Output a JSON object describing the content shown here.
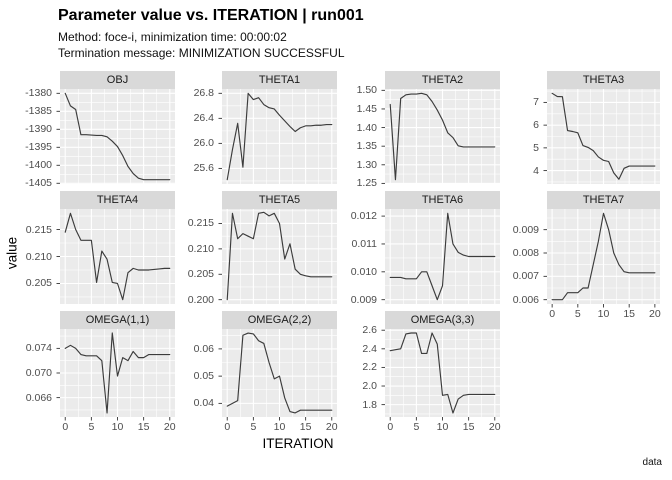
{
  "header": {
    "title": "Parameter value vs. ITERATION | run001",
    "subtitle_line1": "Method: foce-i, minimization time: 00:00:02",
    "subtitle_line2": "Termination message: MINIMIZATION SUCCESSFUL"
  },
  "axes": {
    "x_title": "ITERATION",
    "y_title": "value"
  },
  "caption": "data",
  "colors": {
    "panel_bg": "#EBEBEB",
    "strip_bg": "#D9D9D9",
    "grid": "#FFFFFF",
    "line": "#3C3C3C",
    "tick_mark": "#333333",
    "tick_text": "#4D4D4D"
  },
  "chart_data": {
    "type": "line",
    "title": "Parameter value vs. ITERATION | run001",
    "subtitle": "Method: foce-i, minimization time: 00:00:02 / Termination message: MINIMIZATION SUCCESSFUL",
    "xlabel": "ITERATION",
    "ylabel": "value",
    "caption": "data",
    "legend_position": "none",
    "grid": "on",
    "x": [
      0,
      1,
      2,
      3,
      4,
      5,
      6,
      7,
      8,
      9,
      10,
      11,
      12,
      13,
      14,
      15,
      16,
      17,
      18,
      19,
      20
    ],
    "x_range": [
      -1,
      21
    ],
    "x_ticks": [
      0,
      5,
      10,
      15,
      20
    ],
    "x_minor_ticks": [
      2.5,
      7.5,
      12.5,
      17.5
    ],
    "facets": [
      {
        "label": "OBJ",
        "row": 0,
        "col": 0,
        "show_x": false,
        "y_range": [
          -1405.2,
          -1378.8
        ],
        "y_ticks": [
          -1405,
          -1400,
          -1395,
          -1390,
          -1385,
          -1380
        ],
        "y_tick_labels": [
          "-1405",
          "-1400",
          "-1395",
          "-1390",
          "-1385",
          "-1380"
        ],
        "values": [
          -1380,
          -1383.5,
          -1384.5,
          -1391.5,
          -1391.5,
          -1391.6,
          -1391.7,
          -1391.7,
          -1392.1,
          -1393.3,
          -1394.8,
          -1397.3,
          -1400.3,
          -1402.3,
          -1403.6,
          -1404,
          -1404,
          -1404,
          -1404,
          -1404,
          -1404
        ]
      },
      {
        "label": "THETA1",
        "row": 0,
        "col": 1,
        "show_x": false,
        "y_range": [
          25.351,
          26.869
        ],
        "y_ticks": [
          25.6,
          26.0,
          26.4,
          26.8
        ],
        "y_tick_labels": [
          "25.6",
          "26.0",
          "26.4",
          "26.8"
        ],
        "values": [
          25.42,
          25.9,
          26.32,
          25.62,
          26.8,
          26.7,
          26.73,
          26.62,
          26.57,
          26.55,
          26.45,
          26.36,
          26.27,
          26.19,
          26.25,
          26.28,
          26.28,
          26.29,
          26.29,
          26.3,
          26.3
        ]
      },
      {
        "label": "THETA2",
        "row": 0,
        "col": 2,
        "show_x": false,
        "y_range": [
          1.2484,
          1.5036
        ],
        "y_ticks": [
          1.25,
          1.3,
          1.35,
          1.4,
          1.45,
          1.5
        ],
        "y_tick_labels": [
          "1.25",
          "1.30",
          "1.35",
          "1.40",
          "1.45",
          "1.50"
        ],
        "values": [
          1.462,
          1.26,
          1.478,
          1.488,
          1.49,
          1.49,
          1.492,
          1.488,
          1.47,
          1.447,
          1.42,
          1.386,
          1.373,
          1.351,
          1.348,
          1.348,
          1.348,
          1.348,
          1.348,
          1.348,
          1.348
        ]
      },
      {
        "label": "THETA3",
        "row": 0,
        "col": 3,
        "show_x": false,
        "y_range": [
          3.41,
          7.59
        ],
        "y_ticks": [
          4,
          5,
          6,
          7
        ],
        "y_tick_labels": [
          "4",
          "5",
          "6",
          "7"
        ],
        "values": [
          7.4,
          7.26,
          7.25,
          5.76,
          5.72,
          5.66,
          5.1,
          5.02,
          4.88,
          4.6,
          4.45,
          4.4,
          3.9,
          3.62,
          4.1,
          4.2,
          4.2,
          4.2,
          4.2,
          4.2,
          4.2
        ]
      },
      {
        "label": "THETA4",
        "row": 1,
        "col": 0,
        "show_x": false,
        "y_range": [
          0.2012,
          0.2188
        ],
        "y_ticks": [
          0.205,
          0.21,
          0.215
        ],
        "y_tick_labels": [
          "0.205",
          "0.210",
          "0.215"
        ],
        "values": [
          0.2145,
          0.218,
          0.215,
          0.213,
          0.213,
          0.213,
          0.2052,
          0.211,
          0.2095,
          0.2052,
          0.205,
          0.202,
          0.207,
          0.2078,
          0.2075,
          0.2075,
          0.2075,
          0.2076,
          0.2077,
          0.2078,
          0.2078
        ]
      },
      {
        "label": "THETA5",
        "row": 1,
        "col": 1,
        "show_x": false,
        "y_range": [
          0.19915,
          0.21785
        ],
        "y_ticks": [
          0.2,
          0.205,
          0.21,
          0.215
        ],
        "y_tick_labels": [
          "0.200",
          "0.205",
          "0.210",
          "0.215"
        ],
        "values": [
          0.2,
          0.217,
          0.212,
          0.213,
          0.2125,
          0.212,
          0.217,
          0.2172,
          0.2165,
          0.217,
          0.215,
          0.208,
          0.211,
          0.206,
          0.205,
          0.2047,
          0.2045,
          0.2045,
          0.2045,
          0.2045,
          0.2045
        ]
      },
      {
        "label": "THETA6",
        "row": 1,
        "col": 2,
        "show_x": false,
        "y_range": [
          0.008845,
          0.012255
        ],
        "y_ticks": [
          0.009,
          0.01,
          0.011,
          0.012
        ],
        "y_tick_labels": [
          "0.009",
          "0.010",
          "0.011",
          "0.012"
        ],
        "values": [
          0.0098,
          0.0098,
          0.0098,
          0.00975,
          0.00975,
          0.00975,
          0.01,
          0.01,
          0.0095,
          0.009,
          0.0095,
          0.0121,
          0.011,
          0.0107,
          0.0106,
          0.01055,
          0.01055,
          0.01055,
          0.01055,
          0.01055,
          0.01055
        ]
      },
      {
        "label": "THETA7",
        "row": 1,
        "col": 3,
        "show_x": true,
        "y_range": [
          0.005815,
          0.009885
        ],
        "y_ticks": [
          0.006,
          0.007,
          0.008,
          0.009
        ],
        "y_tick_labels": [
          "0.006",
          "0.007",
          "0.008",
          "0.009"
        ],
        "values": [
          0.006,
          0.006,
          0.006,
          0.0063,
          0.0063,
          0.0063,
          0.0065,
          0.0065,
          0.0075,
          0.0085,
          0.0097,
          0.009,
          0.008,
          0.0075,
          0.0072,
          0.00715,
          0.00715,
          0.00715,
          0.00715,
          0.00715,
          0.00715
        ]
      },
      {
        "label": "OMEGA(1,1)",
        "row": 2,
        "col": 0,
        "show_x": true,
        "y_range": [
          0.06285,
          0.07715
        ],
        "y_ticks": [
          0.066,
          0.07,
          0.074
        ],
        "y_tick_labels": [
          "0.066",
          "0.070",
          "0.074"
        ],
        "values": [
          0.074,
          0.0745,
          0.074,
          0.073,
          0.0728,
          0.0728,
          0.0728,
          0.072,
          0.0635,
          0.0765,
          0.0695,
          0.0725,
          0.072,
          0.0735,
          0.0725,
          0.0725,
          0.073,
          0.073,
          0.073,
          0.073,
          0.073
        ]
      },
      {
        "label": "OMEGA(2,2)",
        "row": 2,
        "col": 1,
        "show_x": true,
        "y_range": [
          0.035,
          0.0673
        ],
        "y_ticks": [
          0.04,
          0.05,
          0.06
        ],
        "y_tick_labels": [
          "0.04",
          "0.05",
          "0.06"
        ],
        "values": [
          0.039,
          0.04,
          0.041,
          0.065,
          0.0658,
          0.0655,
          0.063,
          0.062,
          0.055,
          0.049,
          0.05,
          0.042,
          0.037,
          0.0365,
          0.0375,
          0.0375,
          0.0375,
          0.0375,
          0.0375,
          0.0375,
          0.0375
        ]
      },
      {
        "label": "OMEGA(3,3)",
        "row": 2,
        "col": 2,
        "show_x": true,
        "y_range": [
          1.667,
          2.613
        ],
        "y_ticks": [
          1.8,
          2.0,
          2.2,
          2.4,
          2.6
        ],
        "y_tick_labels": [
          "1.8",
          "2.0",
          "2.2",
          "2.4",
          "2.6"
        ],
        "values": [
          2.38,
          2.39,
          2.4,
          2.56,
          2.57,
          2.57,
          2.35,
          2.35,
          2.57,
          2.45,
          1.9,
          1.91,
          1.71,
          1.86,
          1.9,
          1.91,
          1.91,
          1.91,
          1.91,
          1.91,
          1.91
        ]
      }
    ]
  }
}
